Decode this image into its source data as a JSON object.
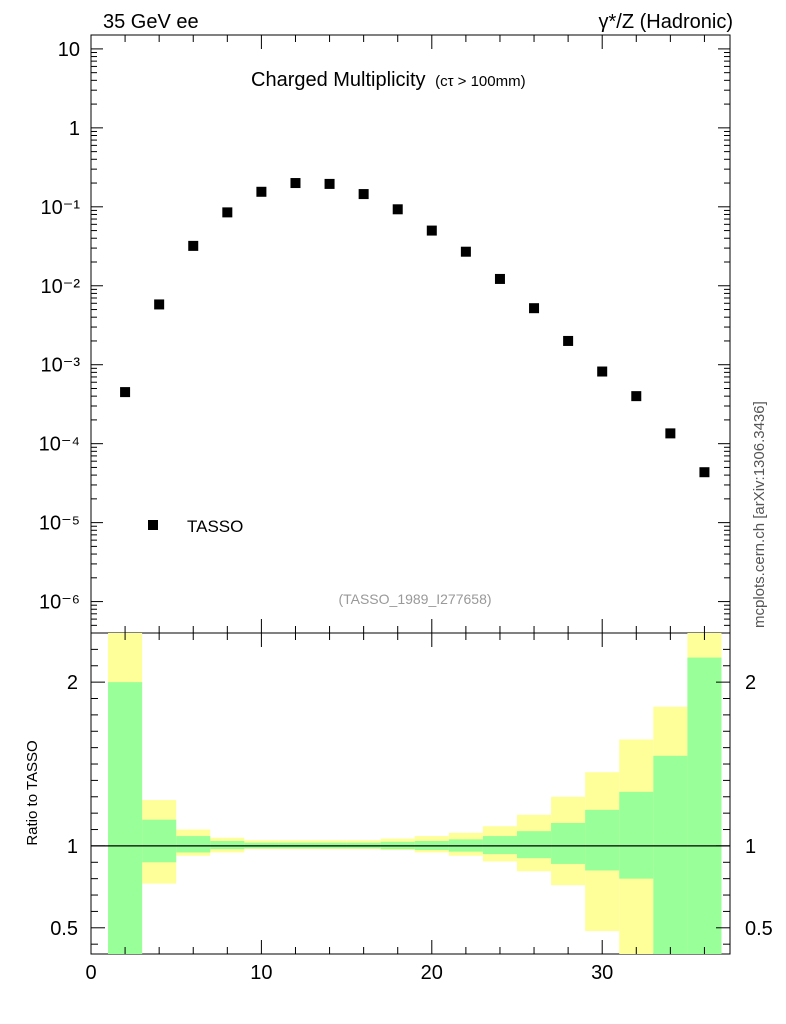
{
  "header": {
    "left_label": "35 GeV ee",
    "right_label": "γ*/Z (Hadronic)",
    "side_label": "mcplots.cern.ch [arXiv:1306.3436]"
  },
  "chart_data": {
    "type": "scatter",
    "title": "Charged Multiplicity",
    "title_suffix": "(cτ > 100mm)",
    "analysis_tag": "(TASSO_1989_I277658)",
    "legend": [
      {
        "name": "TASSO",
        "marker": "filled-square",
        "color": "#000000",
        "placement": "lower-left"
      }
    ],
    "x": [
      2,
      4,
      6,
      8,
      10,
      12,
      14,
      16,
      18,
      20,
      22,
      24,
      26,
      28,
      30,
      32,
      34,
      36
    ],
    "y": [
      0.00045,
      0.0058,
      0.032,
      0.085,
      0.155,
      0.2,
      0.195,
      0.145,
      0.093,
      0.05,
      0.027,
      0.0122,
      0.0052,
      0.002,
      0.00082,
      0.0004,
      0.000135,
      4.35e-05
    ],
    "xlim": [
      0,
      37.5
    ],
    "ylim": [
      4e-07,
      15
    ],
    "yscale": "log",
    "xticks": [
      0,
      10,
      20,
      30
    ],
    "yticks": [
      "10⁻⁶",
      "10⁻⁵",
      "10⁻⁴",
      "10⁻³",
      "10⁻²",
      "10⁻¹",
      "1",
      "10"
    ],
    "ratio": {
      "ylabel": "Ratio to TASSO",
      "ylim": [
        0.34,
        2.3
      ],
      "yticks": [
        "0.5",
        "1",
        "2"
      ],
      "reference_line": 1.0,
      "bin_edges": [
        1,
        3,
        5,
        7,
        9,
        11,
        13,
        15,
        17,
        19,
        21,
        23,
        25,
        27,
        29,
        31,
        33,
        35,
        37
      ],
      "inner_band": {
        "color": "#99ff99",
        "low": [
          0.0,
          0.9,
          0.96,
          0.98,
          0.985,
          0.985,
          0.985,
          0.985,
          0.98,
          0.975,
          0.965,
          0.95,
          0.925,
          0.89,
          0.85,
          0.8,
          0.0,
          0.0
        ],
        "high": [
          2.0,
          1.16,
          1.06,
          1.03,
          1.02,
          1.02,
          1.02,
          1.02,
          1.025,
          1.03,
          1.04,
          1.06,
          1.09,
          1.14,
          1.22,
          1.33,
          1.55,
          2.15
        ]
      },
      "outer_band": {
        "color": "#ffff99",
        "low": [
          0.0,
          0.77,
          0.94,
          0.96,
          0.98,
          0.98,
          0.98,
          0.98,
          0.975,
          0.96,
          0.94,
          0.905,
          0.845,
          0.76,
          0.48,
          0.0,
          0.0,
          0.0
        ],
        "high": [
          2.3,
          1.28,
          1.1,
          1.05,
          1.035,
          1.035,
          1.035,
          1.035,
          1.045,
          1.06,
          1.08,
          1.12,
          1.19,
          1.3,
          1.45,
          1.65,
          1.85,
          2.3
        ]
      }
    }
  }
}
